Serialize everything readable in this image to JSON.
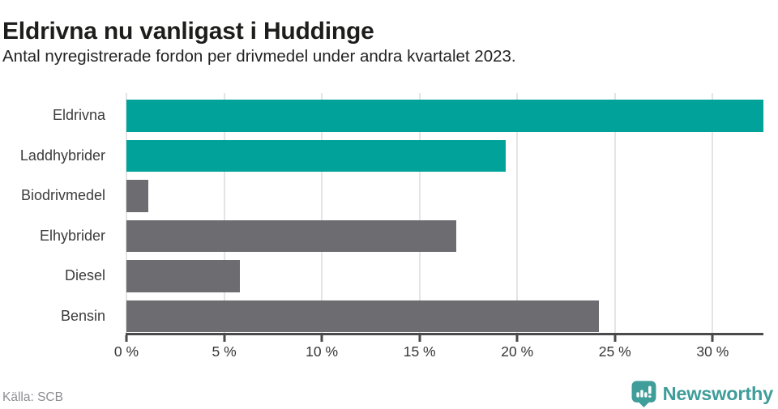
{
  "title": "Eldrivna nu vanligast i Huddinge",
  "subtitle": "Antal nyregistrerade fordon per drivmedel under andra kvartalet 2023.",
  "source": "Källa: SCB",
  "logo": {
    "text": "Newsworthy",
    "icon": "newsworthy-speech-bubble-chart-icon",
    "color": "#3f9d9a"
  },
  "chart_data": {
    "type": "bar",
    "orientation": "horizontal",
    "title": "Eldrivna nu vanligast i Huddinge",
    "subtitle": "Antal nyregistrerade fordon per drivmedel under andra kvartalet 2023.",
    "categories": [
      "Eldrivna",
      "Laddhybrider",
      "Biodrivmedel",
      "Elhybrider",
      "Diesel",
      "Bensin"
    ],
    "values": [
      32.6,
      19.4,
      1.1,
      16.9,
      5.8,
      24.2
    ],
    "unit": "%",
    "colors": [
      "#00a29a",
      "#00a29a",
      "#6c6c71",
      "#6c6c71",
      "#6c6c71",
      "#6c6c71"
    ],
    "highlight_color": "#00a29a",
    "default_color": "#6c6c71",
    "xlim": [
      0,
      32.6
    ],
    "xticks": [
      0,
      5,
      10,
      15,
      20,
      25,
      30
    ],
    "xtick_labels": [
      "0 %",
      "5 %",
      "10 %",
      "15 %",
      "20 %",
      "25 %",
      "30 %"
    ],
    "grid": "vertical",
    "gridline_color": "#e4e4e4",
    "axis_color": "#4a4a4d",
    "legend": "none"
  }
}
